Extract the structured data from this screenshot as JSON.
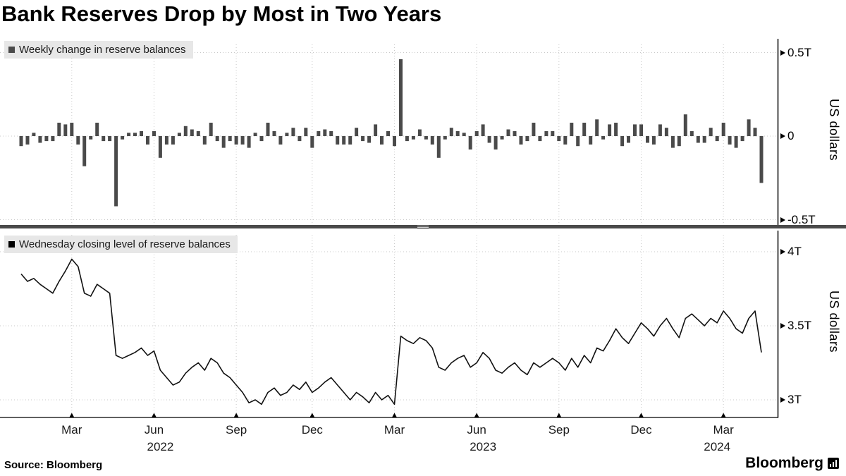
{
  "title": "Bank Reserves Drop by Most in Two Years",
  "source": "Source: Bloomberg",
  "brand": "Bloomberg",
  "colors": {
    "bar": "#4a4a4a",
    "line": "#111111",
    "grid": "#c9c9c9",
    "axis": "#000000",
    "legend_bg": "#e7e7e7",
    "divider": "#4a4a4a"
  },
  "x_axis": {
    "x_range": [
      "Jan 2022",
      "Apr 2024"
    ],
    "month_ticks": [
      {
        "label": "Mar",
        "index": 8
      },
      {
        "label": "Jun",
        "index": 21
      },
      {
        "label": "Sep",
        "index": 34
      },
      {
        "label": "Dec",
        "index": 46
      },
      {
        "label": "Mar",
        "index": 59
      },
      {
        "label": "Jun",
        "index": 72
      },
      {
        "label": "Sep",
        "index": 85
      },
      {
        "label": "Dec",
        "index": 98
      },
      {
        "label": "Mar",
        "index": 111
      }
    ],
    "year_ticks": [
      {
        "label": "2022",
        "index": 22
      },
      {
        "label": "2023",
        "index": 73
      },
      {
        "label": "2024",
        "index": 110
      }
    ]
  },
  "chart_data": [
    {
      "type": "bar",
      "title": "Weekly change in reserve balances",
      "ylabel": "US dollars",
      "unit": "trillions of US dollars",
      "frequency": "weekly",
      "ylim": [
        -0.55,
        0.58
      ],
      "yticks": [
        {
          "label": "0.5T",
          "value": 0.5
        },
        {
          "label": "0",
          "value": 0
        },
        {
          "label": "-0.5T",
          "value": -0.5
        }
      ],
      "values": [
        -0.06,
        -0.05,
        0.02,
        -0.04,
        -0.03,
        -0.03,
        0.08,
        0.07,
        0.08,
        -0.05,
        -0.18,
        -0.02,
        0.08,
        -0.03,
        -0.03,
        -0.42,
        -0.02,
        0.02,
        0.02,
        0.03,
        -0.05,
        0.03,
        -0.13,
        -0.05,
        -0.05,
        0.02,
        0.06,
        0.04,
        0.03,
        -0.05,
        0.08,
        -0.03,
        -0.07,
        -0.03,
        -0.05,
        -0.05,
        -0.07,
        0.02,
        -0.03,
        0.08,
        0.03,
        -0.05,
        0.02,
        0.05,
        -0.03,
        0.05,
        -0.07,
        0.03,
        0.04,
        0.03,
        -0.05,
        -0.05,
        -0.05,
        0.05,
        -0.03,
        -0.04,
        0.07,
        -0.05,
        0.03,
        -0.06,
        0.46,
        -0.03,
        -0.02,
        0.04,
        -0.02,
        -0.05,
        -0.13,
        -0.02,
        0.05,
        0.03,
        0.02,
        -0.08,
        0.03,
        0.07,
        -0.04,
        -0.08,
        -0.02,
        0.04,
        0.03,
        -0.05,
        -0.03,
        0.08,
        -0.03,
        0.03,
        0.03,
        -0.03,
        -0.05,
        0.08,
        -0.06,
        0.08,
        -0.05,
        0.1,
        -0.02,
        0.07,
        0.08,
        -0.06,
        -0.04,
        0.07,
        0.07,
        -0.04,
        -0.05,
        0.07,
        0.05,
        -0.07,
        -0.06,
        0.13,
        0.03,
        -0.04,
        -0.04,
        0.05,
        -0.03,
        0.08,
        -0.05,
        -0.07,
        -0.03,
        0.1,
        0.05,
        -0.28
      ]
    },
    {
      "type": "line",
      "title": "Wednesday closing level of reserve balances",
      "ylabel": "US dollars",
      "unit": "trillions of US dollars",
      "frequency": "weekly",
      "ylim": [
        2.94,
        4.05
      ],
      "yticks": [
        {
          "label": "4T",
          "value": 4
        },
        {
          "label": "3.5T",
          "value": 3.5
        },
        {
          "label": "3T",
          "value": 3
        }
      ],
      "values": [
        3.85,
        3.8,
        3.82,
        3.78,
        3.75,
        3.72,
        3.8,
        3.87,
        3.95,
        3.9,
        3.72,
        3.7,
        3.78,
        3.75,
        3.72,
        3.3,
        3.28,
        3.3,
        3.32,
        3.35,
        3.3,
        3.33,
        3.2,
        3.15,
        3.1,
        3.12,
        3.18,
        3.22,
        3.25,
        3.2,
        3.28,
        3.25,
        3.18,
        3.15,
        3.1,
        3.05,
        2.98,
        3.0,
        2.97,
        3.05,
        3.08,
        3.03,
        3.05,
        3.1,
        3.07,
        3.12,
        3.05,
        3.08,
        3.12,
        3.15,
        3.1,
        3.05,
        3.0,
        3.05,
        3.02,
        2.98,
        3.05,
        3.0,
        3.03,
        2.97,
        3.43,
        3.4,
        3.38,
        3.42,
        3.4,
        3.35,
        3.22,
        3.2,
        3.25,
        3.28,
        3.3,
        3.22,
        3.25,
        3.32,
        3.28,
        3.2,
        3.18,
        3.22,
        3.25,
        3.2,
        3.17,
        3.25,
        3.22,
        3.25,
        3.28,
        3.25,
        3.2,
        3.28,
        3.22,
        3.3,
        3.25,
        3.35,
        3.33,
        3.4,
        3.48,
        3.42,
        3.38,
        3.45,
        3.52,
        3.48,
        3.43,
        3.5,
        3.55,
        3.48,
        3.42,
        3.55,
        3.58,
        3.54,
        3.5,
        3.55,
        3.52,
        3.6,
        3.55,
        3.48,
        3.45,
        3.55,
        3.6,
        3.32
      ]
    }
  ]
}
